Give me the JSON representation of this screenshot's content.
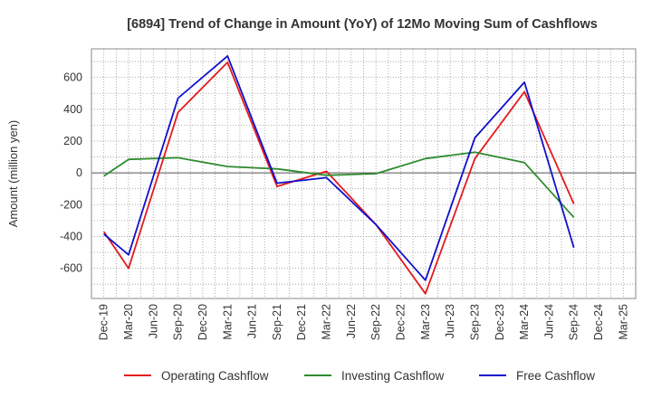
{
  "chart_data": {
    "type": "line",
    "title": "[6894]  Trend of Change in Amount (YoY) of 12Mo Moving Sum of Cashflows",
    "xlabel": "",
    "ylabel": "Amount (million yen)",
    "ylim": [
      -790,
      780
    ],
    "yticks": [
      600,
      400,
      200,
      0,
      -200,
      -400,
      -600
    ],
    "grid": true,
    "legend_position": "bottom",
    "categories": [
      "Dec-19",
      "Mar-20",
      "Jun-20",
      "Sep-20",
      "Dec-20",
      "Mar-21",
      "Jun-21",
      "Sep-21",
      "Dec-21",
      "Mar-22",
      "Jun-22",
      "Sep-22",
      "Dec-22",
      "Mar-23",
      "Jun-23",
      "Sep-23",
      "Dec-23",
      "Mar-24",
      "Jun-24",
      "Sep-24",
      "Dec-24",
      "Mar-25"
    ],
    "series": [
      {
        "name": "Operating Cashflow",
        "color": "#e31a1c",
        "values": [
          -370,
          -600,
          null,
          380,
          null,
          695,
          null,
          -85,
          null,
          10,
          null,
          -325,
          null,
          -760,
          null,
          90,
          null,
          510,
          null,
          -195,
          null,
          null
        ]
      },
      {
        "name": "Investing Cashflow",
        "color": "#2e8b2e",
        "values": [
          -20,
          85,
          null,
          95,
          null,
          40,
          null,
          25,
          null,
          -15,
          null,
          -5,
          null,
          90,
          null,
          130,
          null,
          65,
          null,
          -280,
          null,
          null
        ]
      },
      {
        "name": "Free Cashflow",
        "color": "#1010cc",
        "values": [
          -385,
          -515,
          null,
          470,
          null,
          735,
          null,
          -65,
          null,
          -30,
          null,
          -325,
          null,
          -675,
          null,
          220,
          null,
          570,
          null,
          -470,
          null,
          null
        ]
      }
    ]
  }
}
